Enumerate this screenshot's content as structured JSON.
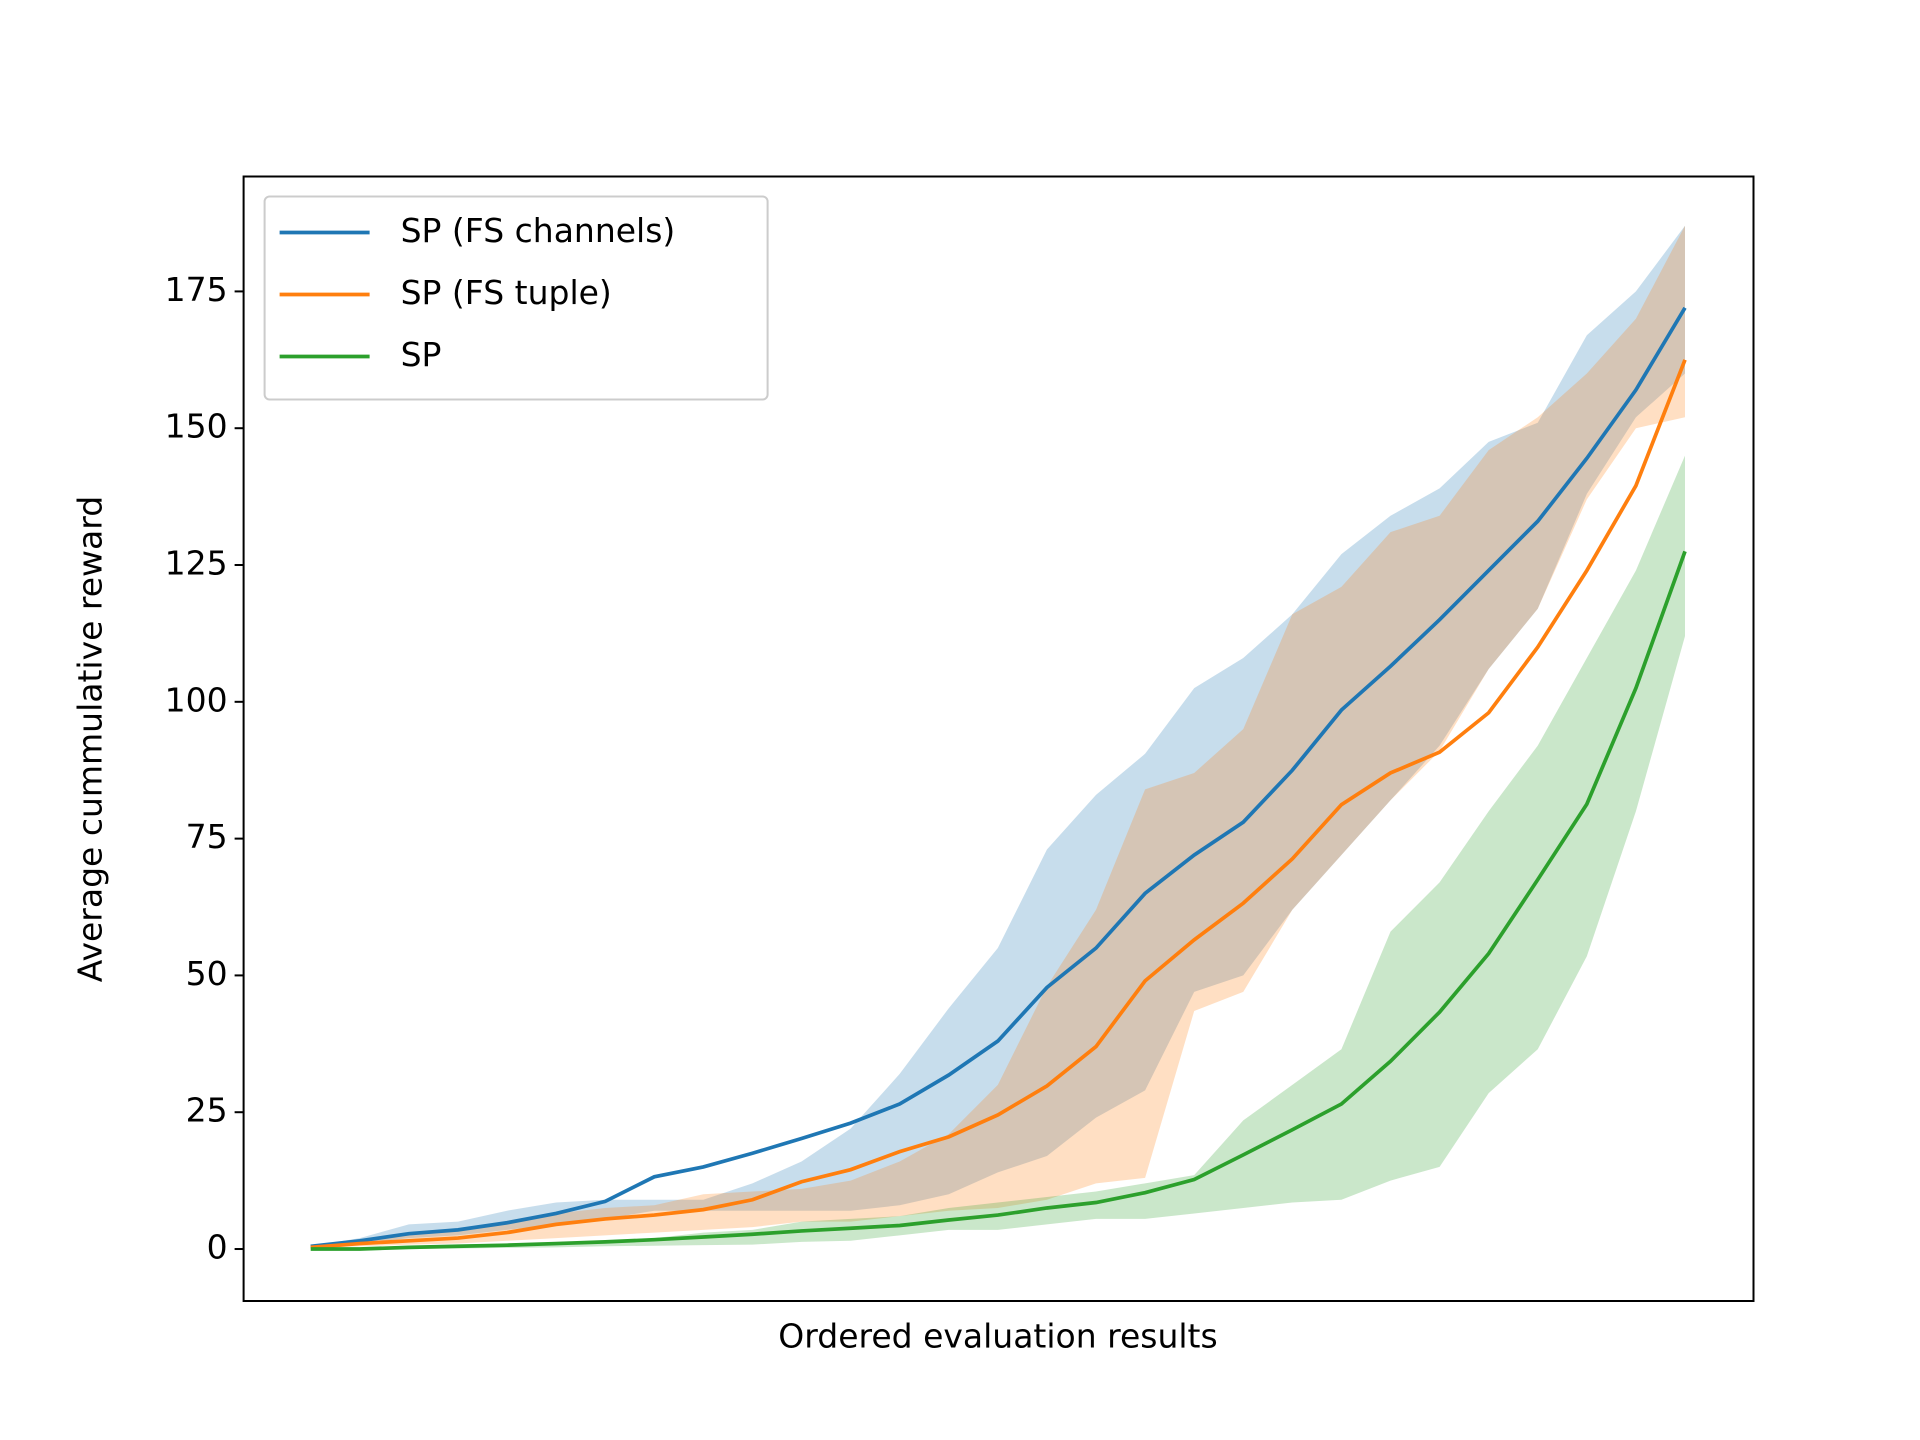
{
  "chart_data": {
    "type": "line",
    "xlabel": "Ordered evaluation results",
    "ylabel": "Average cummulative reward",
    "ylim": [
      -9.5,
      196
    ],
    "yticks": [
      0,
      25,
      50,
      75,
      100,
      125,
      150,
      175
    ],
    "legend": "upper left",
    "series": [
      {
        "name": "SP (FS channels)",
        "color": "#1f77b4",
        "values": [
          0.5,
          1.5,
          2.8,
          3.5,
          4.8,
          6.5,
          8.7,
          13.2,
          15,
          17.5,
          20.2,
          23,
          26.5,
          31.8,
          38,
          47.8,
          55,
          65,
          72,
          78,
          87.5,
          98.5,
          106.5,
          115,
          124,
          133,
          144.5,
          157,
          172
        ],
        "upper": [
          0.5,
          2,
          4.5,
          5,
          7,
          8.5,
          9,
          9,
          9,
          12,
          16,
          22,
          32,
          44,
          55,
          73,
          83,
          90.5,
          102.5,
          108,
          116,
          127,
          134,
          139,
          147.5,
          151,
          167,
          175,
          187
        ],
        "lower": [
          0.3,
          1,
          2,
          2.5,
          3.5,
          4.5,
          5.5,
          7,
          7,
          7,
          7,
          7,
          8,
          10,
          14,
          17,
          24,
          29,
          47,
          50,
          62,
          72,
          82,
          92,
          106,
          117,
          138,
          152,
          160
        ]
      },
      {
        "name": "SP (FS tuple)",
        "color": "#ff7f0e",
        "values": [
          0.3,
          1,
          1.5,
          2,
          3,
          4.5,
          5.5,
          6.2,
          7.2,
          9,
          12.3,
          14.5,
          17.8,
          20.5,
          24.5,
          29.8,
          37,
          49,
          56.5,
          63.2,
          71.3,
          81.2,
          87,
          90.8,
          98,
          110,
          124,
          139.5,
          162.5
        ],
        "upper": [
          0.4,
          1.5,
          2.5,
          3.5,
          5,
          6.5,
          7.5,
          8,
          10,
          10.5,
          11,
          12.5,
          16,
          21,
          30,
          48,
          62,
          84,
          87,
          95,
          116,
          121,
          131,
          134,
          146,
          152,
          160,
          170,
          187
        ],
        "lower": [
          0.2,
          0.5,
          0.8,
          1,
          1.5,
          2,
          2.5,
          3,
          3.5,
          4,
          5,
          5,
          6,
          7,
          7.5,
          9,
          12,
          13,
          43.5,
          47,
          62,
          72,
          82,
          91,
          106,
          117,
          137,
          150,
          152
        ]
      },
      {
        "name": "SP",
        "color": "#2ca02c",
        "values": [
          0,
          0,
          0.3,
          0.5,
          0.7,
          1,
          1.3,
          1.7,
          2.2,
          2.7,
          3.3,
          3.8,
          4.3,
          5.3,
          6.2,
          7.5,
          8.5,
          10.3,
          12.7,
          17.2,
          21.8,
          26.5,
          34.3,
          43.3,
          54,
          67.5,
          81.3,
          102.5,
          127.5
        ],
        "upper": [
          0,
          0.2,
          0.5,
          0.8,
          1,
          1.2,
          1.5,
          2,
          3,
          3.5,
          5,
          5.5,
          6,
          7.5,
          8.5,
          9.5,
          10.5,
          12,
          13.5,
          23.5,
          30,
          36.5,
          58,
          67,
          80,
          92,
          108,
          124,
          145
        ],
        "lower": [
          0,
          0,
          0,
          0.1,
          0.2,
          0.3,
          0.5,
          0.6,
          0.7,
          0.8,
          1.3,
          1.5,
          2.5,
          3.5,
          3.5,
          4.5,
          5.5,
          5.5,
          6.5,
          7.5,
          8.5,
          9,
          12.5,
          15,
          28.5,
          36.5,
          53.5,
          80,
          112
        ]
      }
    ]
  }
}
